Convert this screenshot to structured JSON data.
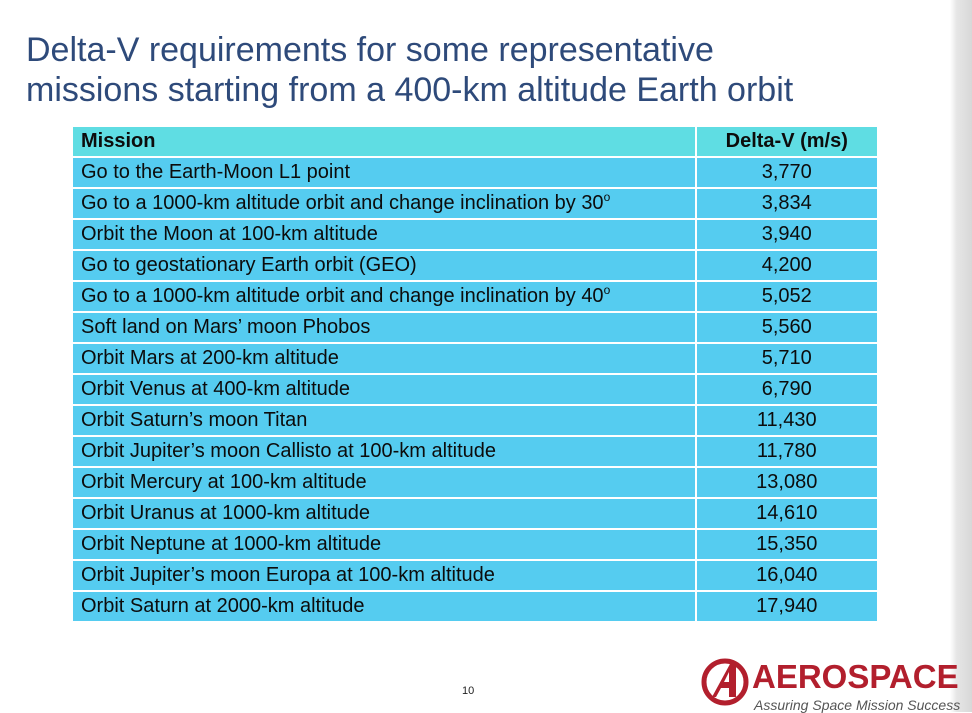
{
  "title": {
    "line1": "Delta-V requirements for some representative",
    "line2": "missions starting from a 400-km altitude Earth orbit"
  },
  "table": {
    "headers": {
      "mission": "Mission",
      "delta_v": "Delta-V (m/s)"
    },
    "rows": [
      {
        "mission": "Go to the Earth-Moon L1 point",
        "sup": "",
        "delta_v": "3,770"
      },
      {
        "mission": "Go to a 1000-km altitude orbit and change inclination by 30",
        "sup": "o",
        "delta_v": "3,834"
      },
      {
        "mission": "Orbit the Moon at 100-km altitude",
        "sup": "",
        "delta_v": "3,940"
      },
      {
        "mission": "Go to geostationary Earth orbit (GEO)",
        "sup": "",
        "delta_v": "4,200"
      },
      {
        "mission": "Go to a 1000-km altitude orbit and change inclination by 40",
        "sup": "o",
        "delta_v": "5,052"
      },
      {
        "mission": "Soft land on Mars’ moon Phobos",
        "sup": "",
        "delta_v": "5,560"
      },
      {
        "mission": "Orbit Mars at 200-km altitude",
        "sup": "",
        "delta_v": "5,710"
      },
      {
        "mission": "Orbit Venus at 400-km altitude",
        "sup": "",
        "delta_v": "6,790"
      },
      {
        "mission": "Orbit Saturn’s moon Titan",
        "sup": "",
        "delta_v": "11,430"
      },
      {
        "mission": "Orbit Jupiter’s moon Callisto at 100-km altitude",
        "sup": "",
        "delta_v": "11,780"
      },
      {
        "mission": "Orbit Mercury at 100-km altitude",
        "sup": "",
        "delta_v": "13,080"
      },
      {
        "mission": "Orbit Uranus at 1000-km altitude",
        "sup": "",
        "delta_v": "14,610"
      },
      {
        "mission": "Orbit Neptune at 1000-km altitude",
        "sup": "",
        "delta_v": "15,350"
      },
      {
        "mission": "Orbit Jupiter’s moon Europa at 100-km altitude",
        "sup": "",
        "delta_v": "16,040"
      },
      {
        "mission": "Orbit Saturn at 2000-km altitude",
        "sup": "",
        "delta_v": "17,940"
      }
    ]
  },
  "footer": {
    "page_number": "10",
    "logo_name": "AEROSPACE",
    "logo_tagline": "Assuring Space Mission Success",
    "logo_icon": "aerospace-a-logo-icon"
  },
  "colors": {
    "title": "#2e4a7a",
    "header_bg": "#5fdde3",
    "row_bg": "#55ccf0",
    "brand_red": "#b21f2d"
  }
}
